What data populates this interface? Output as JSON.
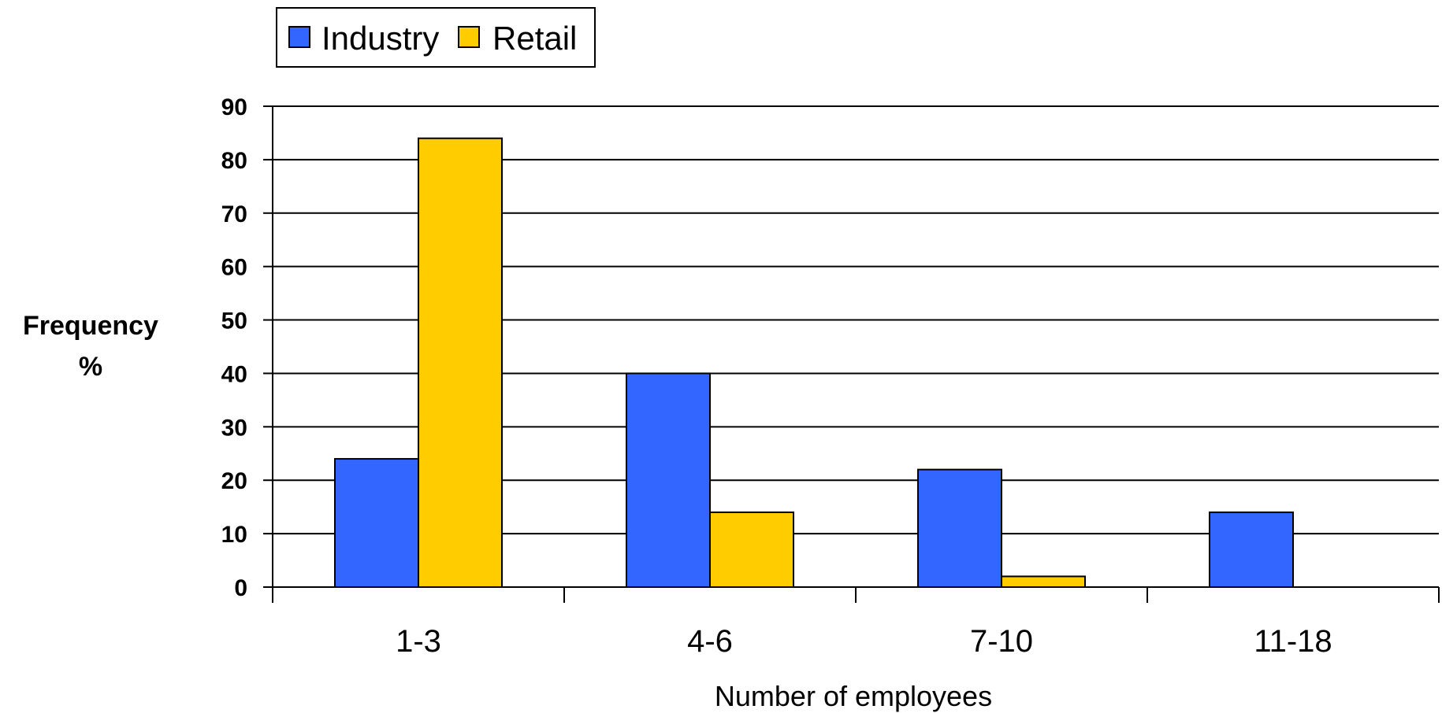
{
  "chart_data": {
    "type": "bar",
    "title": "",
    "xlabel": "Number of employees",
    "ylabel_line1": "Frequency",
    "ylabel_line2": "%",
    "categories": [
      "1-3",
      "4-6",
      "7-10",
      "11-18"
    ],
    "series": [
      {
        "name": "Industry",
        "color": "#3366FF",
        "values": [
          24,
          40,
          22,
          14
        ]
      },
      {
        "name": "Retail",
        "color": "#FFCC00",
        "values": [
          84,
          14,
          2,
          0
        ]
      }
    ],
    "ylim": [
      0,
      90
    ],
    "yticks": [
      0,
      10,
      20,
      30,
      40,
      50,
      60,
      70,
      80,
      90
    ],
    "grid": true,
    "legend_position": "top-left"
  }
}
